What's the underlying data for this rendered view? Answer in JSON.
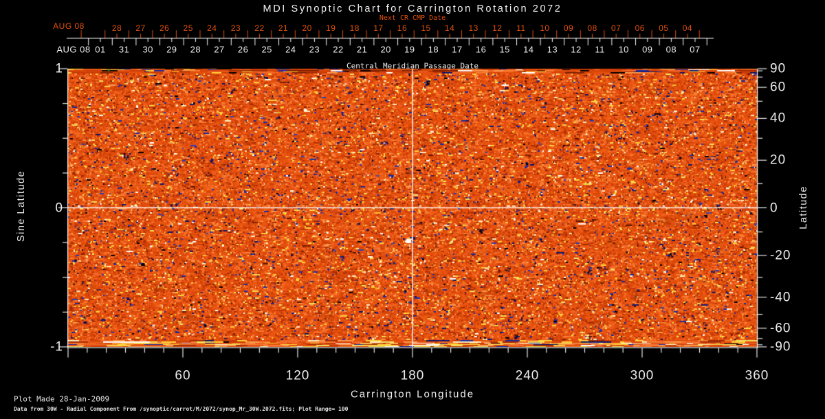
{
  "title": "MDI Synoptic Chart for Carrington Rotation 2072",
  "colors": {
    "background": "#000000",
    "foreground": "#ececec",
    "cmp_red": "#e0500e",
    "colormap_base": "#e44f0e",
    "negative_flux_blue": "#1a2aa0",
    "positive_flux_yellow": "#ffd23a"
  },
  "next_cr_axis": {
    "label": "Next CR CMP Date",
    "month_label": "AUG 08",
    "days": [
      "28",
      "27",
      "26",
      "25",
      "24",
      "23",
      "22",
      "21",
      "20",
      "19",
      "18",
      "17",
      "16",
      "15",
      "14",
      "13",
      "12",
      "11",
      "10",
      "09",
      "08",
      "07",
      "06",
      "05",
      "04"
    ]
  },
  "cmp_axis": {
    "caption": "Central Meridian Passage Date",
    "month_label": "AUG 08",
    "days": [
      "01",
      "31",
      "30",
      "29",
      "28",
      "27",
      "26",
      "25",
      "24",
      "23",
      "22",
      "21",
      "20",
      "19",
      "18",
      "17",
      "16",
      "15",
      "14",
      "13",
      "12",
      "11",
      "10",
      "09",
      "08",
      "07"
    ]
  },
  "x_axis": {
    "title": "Carrington Longitude",
    "tick_labels": [
      "60",
      "120",
      "180",
      "240",
      "300",
      "360"
    ]
  },
  "y_axis_left": {
    "title": "Sine Latitude",
    "tick_labels": [
      "1",
      "0",
      "-1"
    ]
  },
  "y_axis_right": {
    "title": "Latitude",
    "tick_labels": [
      "90",
      "60",
      "40",
      "20",
      "0",
      "-20",
      "-40",
      "-60",
      "-90"
    ]
  },
  "footer": {
    "line1": "Plot Made 28-Jan-2009",
    "line2": "Data from 30W - Radial Component From /synoptic/carrot/M/2072/synop_Mr_30W.2072.fits; Plot Range=  100"
  },
  "chart_data": {
    "type": "heatmap",
    "title": "MDI Synoptic Chart for Carrington Rotation 2072",
    "carrington_rotation": 2072,
    "component": "Radial (30W)",
    "xlabel": "Carrington Longitude",
    "ylabel_left": "Sine Latitude",
    "ylabel_right": "Latitude",
    "x_range": [
      0,
      360
    ],
    "x_major_ticks": [
      60,
      120,
      180,
      240,
      300,
      360
    ],
    "x_minor_tick_step_deg": 10,
    "y_sine_range": [
      -1,
      1
    ],
    "y_sine_labeled_ticks": [
      1,
      0,
      -1
    ],
    "y_sine_minor_tick_step": 0.25,
    "y_latitude_labeled_ticks": [
      90,
      60,
      40,
      20,
      0,
      -20,
      -40,
      -60,
      -90
    ],
    "y_latitude_minor_tick_step_deg": 10,
    "reference_lines": {
      "longitude_deg": 180,
      "sine_latitude": 0
    },
    "top_axis_next_cr_cmp_dates": {
      "month": "AUG 08",
      "days_descending": [
        "28",
        "27",
        "26",
        "25",
        "24",
        "23",
        "22",
        "21",
        "20",
        "19",
        "18",
        "17",
        "16",
        "15",
        "14",
        "13",
        "12",
        "11",
        "10",
        "09",
        "08",
        "07",
        "06",
        "05",
        "04"
      ]
    },
    "cmp_dates": {
      "month": "AUG 08",
      "days_descending": [
        "01",
        "31",
        "30",
        "29",
        "28",
        "27",
        "26",
        "25",
        "24",
        "23",
        "22",
        "21",
        "20",
        "19",
        "18",
        "17",
        "16",
        "15",
        "14",
        "13",
        "12",
        "11",
        "10",
        "09",
        "08",
        "07"
      ]
    },
    "plot_range_gauss": 100,
    "plot_made": "28-Jan-2009",
    "data_source": "/synoptic/carrot/M/2072/synop_Mr_30W.2072.fits",
    "grid": false,
    "legend": false,
    "description": "Speckled solar magnetogram noise in a red-orange colormap covering the full 360x(sine -1..1) map; scattered dark-blue negative-polarity and yellow-to-white positive-polarity flux specks; horizontally streaked texture near both poles with brighter yellow streaking along the bottom edge; white reference crosshair at longitude 180 and sine latitude 0; prominent white flux spot with adjacent dark-blue patch near longitude 178, sine latitude -0.23."
  }
}
